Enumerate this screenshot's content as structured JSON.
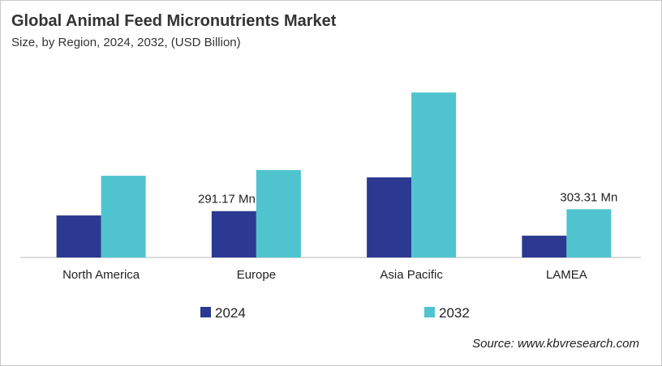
{
  "chart_data": {
    "type": "bar",
    "title": "Global Animal Feed Micronutrients Market",
    "subtitle": "Size, by Region, 2024, 2032, (USD Billion)",
    "categories": [
      "North America",
      "Europe",
      "Asia Pacific",
      "LAMEA"
    ],
    "series": [
      {
        "name": "2024",
        "color": "#2b3990",
        "values": [
          264,
          291.17,
          503,
          137
        ]
      },
      {
        "name": "2032",
        "color": "#4fc4cf",
        "values": [
          513,
          549,
          1036,
          303.31
        ]
      }
    ],
    "data_labels": [
      {
        "series": 0,
        "category": 1,
        "text": "291.17 Mn"
      },
      {
        "series": 1,
        "category": 3,
        "text": "303.31 Mn"
      }
    ],
    "ylim": [
      0,
      1200
    ],
    "grid": false,
    "legend": "bottom",
    "source": "Source: www.kbvresearch.com"
  }
}
